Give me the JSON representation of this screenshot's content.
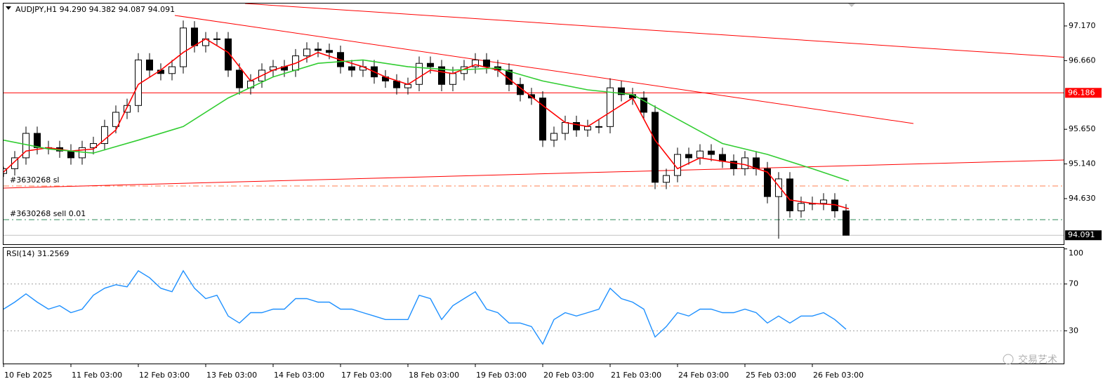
{
  "watermark": "交易艺术",
  "chart_data": [
    {
      "type": "candlestick",
      "title": "AUDJPY,H1  94.290 94.382 94.087 94.091",
      "up_color": "#ffffff",
      "down_color": "#000000",
      "outline_color": "#000000",
      "xlim": [
        -1,
        377.5
      ],
      "ylim": [
        93.959,
        97.5
      ],
      "yticks": [
        {
          "value": 97.17,
          "label": "97.170"
        },
        {
          "value": 96.66,
          "label": "96.660"
        },
        {
          "value": 95.65,
          "label": "95.650"
        },
        {
          "value": 95.14,
          "label": "95.140"
        },
        {
          "value": 94.63,
          "label": "94.630"
        }
      ],
      "x": [
        0,
        4,
        8,
        12,
        16,
        20,
        24,
        28,
        32,
        36,
        40,
        44,
        48,
        52,
        56,
        60,
        64,
        68,
        72,
        76,
        80,
        84,
        88,
        92,
        96,
        100,
        104,
        108,
        112,
        116,
        120,
        124,
        128,
        132,
        136,
        140,
        144,
        148,
        152,
        156,
        160,
        164,
        168,
        172,
        176,
        180,
        184,
        188,
        192,
        196,
        200,
        204,
        208,
        212,
        216,
        220,
        224,
        228,
        232,
        236,
        240,
        244,
        248,
        252,
        256,
        260,
        264,
        268,
        272,
        276,
        280,
        284,
        288,
        292,
        296,
        300
      ],
      "open": [
        95.0,
        95.07,
        95.23,
        95.59,
        95.38,
        95.38,
        95.33,
        95.23,
        95.38,
        95.44,
        95.69,
        95.9,
        96.0,
        96.67,
        96.52,
        96.47,
        96.57,
        97.14,
        96.88,
        96.98,
        96.98,
        96.52,
        96.26,
        96.36,
        96.52,
        96.57,
        96.52,
        96.73,
        96.83,
        96.81,
        96.78,
        96.57,
        96.52,
        96.57,
        96.42,
        96.36,
        96.26,
        96.31,
        96.62,
        96.57,
        96.31,
        96.47,
        96.57,
        96.67,
        96.57,
        96.52,
        96.31,
        96.16,
        96.11,
        95.49,
        95.59,
        95.75,
        95.64,
        95.69,
        95.69,
        96.26,
        96.16,
        96.11,
        95.9,
        94.87,
        94.97,
        95.28,
        95.23,
        95.33,
        95.28,
        95.18,
        95.07,
        95.23,
        95.07,
        94.66,
        94.92,
        94.45,
        94.56,
        94.56,
        94.61,
        94.45
      ],
      "high": [
        95.1,
        95.33,
        95.69,
        95.69,
        95.48,
        95.48,
        95.43,
        95.48,
        95.54,
        95.79,
        96.0,
        96.1,
        96.77,
        96.77,
        96.62,
        96.67,
        97.25,
        97.24,
        97.08,
        97.08,
        97.08,
        96.62,
        96.46,
        96.62,
        96.67,
        96.67,
        96.83,
        96.93,
        96.93,
        96.91,
        96.88,
        96.67,
        96.67,
        96.67,
        96.52,
        96.46,
        96.41,
        96.72,
        96.72,
        96.67,
        96.57,
        96.67,
        96.77,
        96.77,
        96.67,
        96.62,
        96.41,
        96.26,
        96.21,
        95.69,
        95.85,
        95.85,
        95.79,
        95.79,
        96.4,
        96.36,
        96.26,
        96.21,
        96.0,
        95.07,
        95.38,
        95.38,
        95.43,
        95.43,
        95.38,
        95.28,
        95.33,
        95.33,
        95.17,
        95.02,
        95.02,
        94.66,
        94.66,
        94.71,
        94.71,
        94.55
      ],
      "low": [
        94.95,
        94.97,
        95.13,
        95.28,
        95.28,
        95.23,
        95.13,
        95.13,
        95.28,
        95.34,
        95.59,
        95.8,
        95.9,
        96.42,
        96.37,
        96.37,
        96.47,
        96.78,
        96.78,
        96.88,
        96.42,
        96.16,
        96.16,
        96.26,
        96.42,
        96.42,
        96.42,
        96.63,
        96.71,
        96.68,
        96.47,
        96.42,
        96.42,
        96.32,
        96.26,
        96.16,
        96.16,
        96.21,
        96.47,
        96.21,
        96.21,
        96.37,
        96.47,
        96.47,
        96.42,
        96.21,
        96.06,
        96.01,
        95.39,
        95.39,
        95.49,
        95.54,
        95.54,
        95.59,
        95.59,
        96.06,
        96.01,
        95.8,
        94.77,
        94.77,
        94.87,
        95.13,
        95.13,
        95.18,
        95.08,
        94.97,
        94.97,
        94.97,
        94.56,
        94.04,
        94.35,
        94.35,
        94.46,
        94.46,
        94.35,
        94.087
      ],
      "close": [
        95.07,
        95.23,
        95.59,
        95.38,
        95.38,
        95.33,
        95.23,
        95.38,
        95.44,
        95.69,
        95.9,
        96.0,
        96.67,
        96.52,
        96.47,
        96.57,
        97.14,
        96.88,
        96.98,
        96.98,
        96.52,
        96.26,
        96.36,
        96.52,
        96.57,
        96.52,
        96.73,
        96.83,
        96.81,
        96.78,
        96.57,
        96.52,
        96.57,
        96.42,
        96.36,
        96.26,
        96.31,
        96.62,
        96.57,
        96.31,
        96.47,
        96.57,
        96.67,
        96.57,
        96.52,
        96.31,
        96.16,
        96.11,
        95.49,
        95.59,
        95.75,
        95.64,
        95.69,
        95.69,
        96.26,
        96.16,
        96.11,
        95.9,
        94.87,
        94.97,
        95.28,
        95.23,
        95.33,
        95.28,
        95.18,
        95.07,
        95.23,
        95.07,
        94.66,
        94.92,
        94.45,
        94.56,
        94.56,
        94.61,
        94.45,
        94.091
      ],
      "overlays": [
        {
          "color": "#ff0000",
          "x": [
            0,
            8,
            16,
            24,
            32,
            40,
            48,
            56,
            64,
            72,
            80,
            88,
            96,
            104,
            112,
            120,
            128,
            136,
            144,
            152,
            160,
            168,
            176,
            184,
            192,
            200,
            208,
            216,
            224,
            232,
            240,
            248,
            256,
            264,
            272,
            280,
            288,
            296,
            301
          ],
          "values": [
            95.02,
            95.33,
            95.38,
            95.33,
            95.36,
            95.64,
            96.31,
            96.52,
            96.78,
            96.98,
            96.78,
            96.36,
            96.52,
            96.62,
            96.78,
            96.67,
            96.57,
            96.42,
            96.31,
            96.52,
            96.47,
            96.6,
            96.52,
            96.26,
            96.0,
            95.75,
            95.69,
            95.9,
            96.11,
            95.49,
            95.07,
            95.23,
            95.18,
            95.13,
            95.02,
            94.61,
            94.56,
            94.54,
            94.48
          ]
        },
        {
          "color": "#32cd32",
          "x": [
            0,
            16,
            32,
            48,
            64,
            80,
            96,
            112,
            128,
            144,
            160,
            176,
            192,
            208,
            224,
            240,
            256,
            272,
            288,
            301
          ],
          "values": [
            95.49,
            95.36,
            95.3,
            95.49,
            95.69,
            96.11,
            96.42,
            96.62,
            96.67,
            96.57,
            96.52,
            96.55,
            96.36,
            96.23,
            96.16,
            95.8,
            95.44,
            95.28,
            95.07,
            94.89
          ]
        }
      ],
      "trendlines": [
        {
          "color": "#ff0000",
          "x": [
            86,
            377.5
          ],
          "values": [
            97.5,
            96.71
          ]
        },
        {
          "color": "#ff0000",
          "x": [
            61,
            324
          ],
          "values": [
            97.325,
            95.735
          ]
        },
        {
          "color": "#ff0000",
          "x": [
            0,
            377.5
          ],
          "values": [
            94.785,
            95.198
          ]
        }
      ],
      "levels": [
        {
          "value": 96.186,
          "color": "#ff0000",
          "style": "solid",
          "tag_color": "#ff0000"
        },
        {
          "value": 94.816,
          "color": "#ff7f50",
          "style": "dashdot",
          "text": "#3630268 sl"
        },
        {
          "value": 94.32,
          "color": "#2e8b57",
          "style": "dashdot",
          "text": "#3630268 sell 0.01"
        },
        {
          "value": 94.091,
          "color": "#c0c0c0",
          "style": "solid",
          "tag_color": "#000000"
        }
      ]
    },
    {
      "type": "line",
      "title": "RSI(14) 31.2569",
      "color": "#1e90ff",
      "xlim": [
        -1,
        377.5
      ],
      "ylim": [
        2,
        101
      ],
      "yticks": [
        100,
        70,
        30
      ],
      "levels": [
        70,
        30
      ],
      "xticks": [
        {
          "value": 0,
          "label": "10 Feb 2025"
        },
        {
          "value": 24,
          "label": "11 Feb 03:00"
        },
        {
          "value": 48,
          "label": "12 Feb 03:00"
        },
        {
          "value": 72,
          "label": "13 Feb 03:00"
        },
        {
          "value": 96,
          "label": "14 Feb 03:00"
        },
        {
          "value": 120,
          "label": "17 Feb 03:00"
        },
        {
          "value": 144,
          "label": "18 Feb 03:00"
        },
        {
          "value": 168,
          "label": "19 Feb 03:00"
        },
        {
          "value": 192,
          "label": "20 Feb 03:00"
        },
        {
          "value": 216,
          "label": "21 Feb 03:00"
        },
        {
          "value": 240,
          "label": "24 Feb 03:00"
        },
        {
          "value": 264,
          "label": "25 Feb 03:00"
        },
        {
          "value": 288,
          "label": "26 Feb 03:00"
        }
      ],
      "x": [
        0,
        4,
        8,
        12,
        16,
        20,
        24,
        28,
        32,
        36,
        40,
        44,
        48,
        52,
        56,
        60,
        64,
        68,
        72,
        76,
        80,
        84,
        88,
        92,
        96,
        100,
        104,
        108,
        112,
        116,
        120,
        124,
        128,
        132,
        136,
        140,
        144,
        148,
        152,
        156,
        160,
        164,
        168,
        172,
        176,
        180,
        184,
        188,
        192,
        196,
        200,
        204,
        208,
        212,
        216,
        220,
        224,
        228,
        232,
        236,
        240,
        244,
        248,
        252,
        256,
        260,
        264,
        268,
        272,
        276,
        280,
        284,
        288,
        292,
        296,
        300
      ],
      "values": [
        48.5,
        54.5,
        61.6,
        54.5,
        48.5,
        51.5,
        45.5,
        48.5,
        60.4,
        66.4,
        69.4,
        67.6,
        81.3,
        75.4,
        66.4,
        63.4,
        81.3,
        66.4,
        57.5,
        60.4,
        42.6,
        36.6,
        45.5,
        45.5,
        48.5,
        48.5,
        57.5,
        57.5,
        54.5,
        54.5,
        48.5,
        48.5,
        45.5,
        42.6,
        39.6,
        39.6,
        39.6,
        60.4,
        57.5,
        39.6,
        51.5,
        57.5,
        63.4,
        48.5,
        45.5,
        36.6,
        36.6,
        33.6,
        18.7,
        39.6,
        45.5,
        42.6,
        45.5,
        48.5,
        66.4,
        57.5,
        54.5,
        48.5,
        24.7,
        33.6,
        45.5,
        42.6,
        48.5,
        48.5,
        45.5,
        45.5,
        48.5,
        45.5,
        36.6,
        42.6,
        36.6,
        42.6,
        42.6,
        45.5,
        39.6,
        31.26
      ]
    }
  ]
}
